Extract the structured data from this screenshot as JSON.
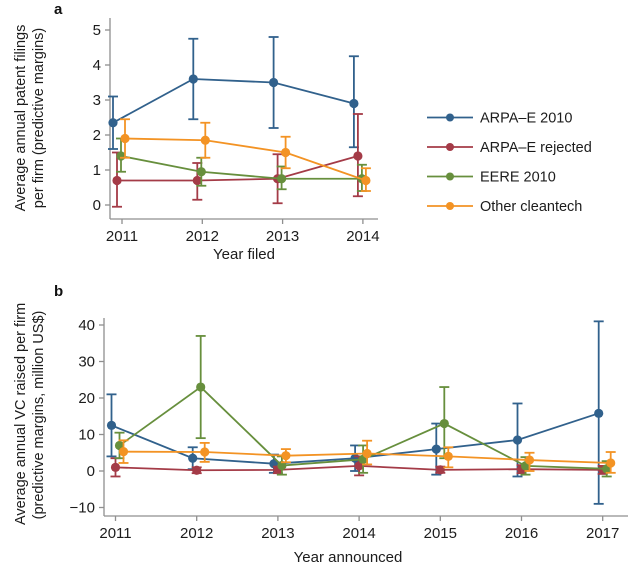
{
  "figure": {
    "panel_a_label": "a",
    "panel_b_label": "b"
  },
  "legend": {
    "items": [
      {
        "label": "ARPA–E 2010",
        "color": "#31618c"
      },
      {
        "label": "ARPA–E rejected",
        "color": "#a43b47"
      },
      {
        "label": "EERE 2010",
        "color": "#678f3d"
      },
      {
        "label": "Other cleantech",
        "color": "#f39324"
      }
    ]
  },
  "chart_data": [
    {
      "type": "line",
      "panel": "a",
      "xlabel": "Year filed",
      "ylabel_lines": [
        "Average annual patent filings",
        "per firm (predictive margins)"
      ],
      "x": [
        2011,
        2012,
        2013,
        2014
      ],
      "yticks": [
        0,
        1,
        2,
        3,
        4,
        5
      ],
      "ylim": [
        -0.4,
        5.35
      ],
      "grid": false,
      "error_bars": true,
      "series": [
        {
          "name": "ARPA–E 2010",
          "color": "#31618c",
          "values": [
            2.35,
            3.6,
            3.5,
            2.9
          ],
          "ci_low": [
            1.6,
            2.45,
            2.2,
            1.65
          ],
          "ci_high": [
            3.1,
            4.75,
            4.8,
            4.25
          ]
        },
        {
          "name": "ARPA–E rejected",
          "color": "#a43b47",
          "values": [
            0.7,
            0.7,
            0.75,
            1.4
          ],
          "ci_low": [
            -0.05,
            0.15,
            0.05,
            0.25
          ],
          "ci_high": [
            1.5,
            1.2,
            1.45,
            2.6
          ]
        },
        {
          "name": "EERE 2010",
          "color": "#678f3d",
          "values": [
            1.4,
            0.95,
            0.75,
            0.75
          ],
          "ci_low": [
            0.95,
            0.55,
            0.45,
            0.4
          ],
          "ci_high": [
            1.9,
            1.35,
            1.1,
            1.15
          ]
        },
        {
          "name": "Other cleantech",
          "color": "#f39324",
          "values": [
            1.9,
            1.85,
            1.5,
            0.7
          ],
          "ci_low": [
            1.35,
            1.35,
            1.05,
            0.4
          ],
          "ci_high": [
            2.45,
            2.35,
            1.95,
            1.05
          ]
        }
      ]
    },
    {
      "type": "line",
      "panel": "b",
      "xlabel": "Year announced",
      "ylabel_lines": [
        "Average annual VC raised per firm",
        "(predictive margins, million US$)"
      ],
      "x": [
        2011,
        2012,
        2013,
        2014,
        2015,
        2016,
        2017
      ],
      "yticks": [
        -10,
        0,
        10,
        20,
        30,
        40
      ],
      "ylim": [
        -12.5,
        42
      ],
      "grid": false,
      "error_bars": true,
      "series": [
        {
          "name": "ARPA–E 2010",
          "color": "#31618c",
          "values": [
            12.5,
            3.5,
            2,
            3.5,
            6,
            8.5,
            15.8
          ],
          "ci_low": [
            4,
            0.5,
            -0.5,
            0,
            -1,
            -1.5,
            -9
          ],
          "ci_high": [
            21,
            6.5,
            4.5,
            7,
            13,
            18.5,
            41
          ]
        },
        {
          "name": "ARPA–E rejected",
          "color": "#a43b47",
          "values": [
            1,
            0.2,
            0.3,
            1.4,
            0.3,
            0.5,
            0.3
          ],
          "ci_low": [
            -1.5,
            -0.6,
            -0.6,
            -1.2,
            -0.5,
            -0.6,
            -0.8
          ],
          "ci_high": [
            3.5,
            1,
            1.2,
            4,
            1.2,
            1.6,
            1.4
          ]
        },
        {
          "name": "EERE 2010",
          "color": "#678f3d",
          "values": [
            7,
            23,
            1.5,
            3.2,
            13,
            1.4,
            0.6
          ],
          "ci_low": [
            3.5,
            9,
            -1,
            -0.5,
            3.5,
            -1,
            -1.5
          ],
          "ci_high": [
            10.5,
            37,
            4,
            7,
            23,
            3.8,
            2.7
          ]
        },
        {
          "name": "Other cleantech",
          "color": "#f39324",
          "values": [
            5.3,
            5.2,
            4.2,
            4.8,
            4,
            3,
            2.2
          ],
          "ci_low": [
            2.2,
            2.5,
            2.4,
            1.8,
            1,
            0,
            -0.5
          ],
          "ci_high": [
            8.4,
            7.7,
            6,
            8.3,
            6.5,
            5,
            5.2
          ]
        }
      ]
    }
  ]
}
